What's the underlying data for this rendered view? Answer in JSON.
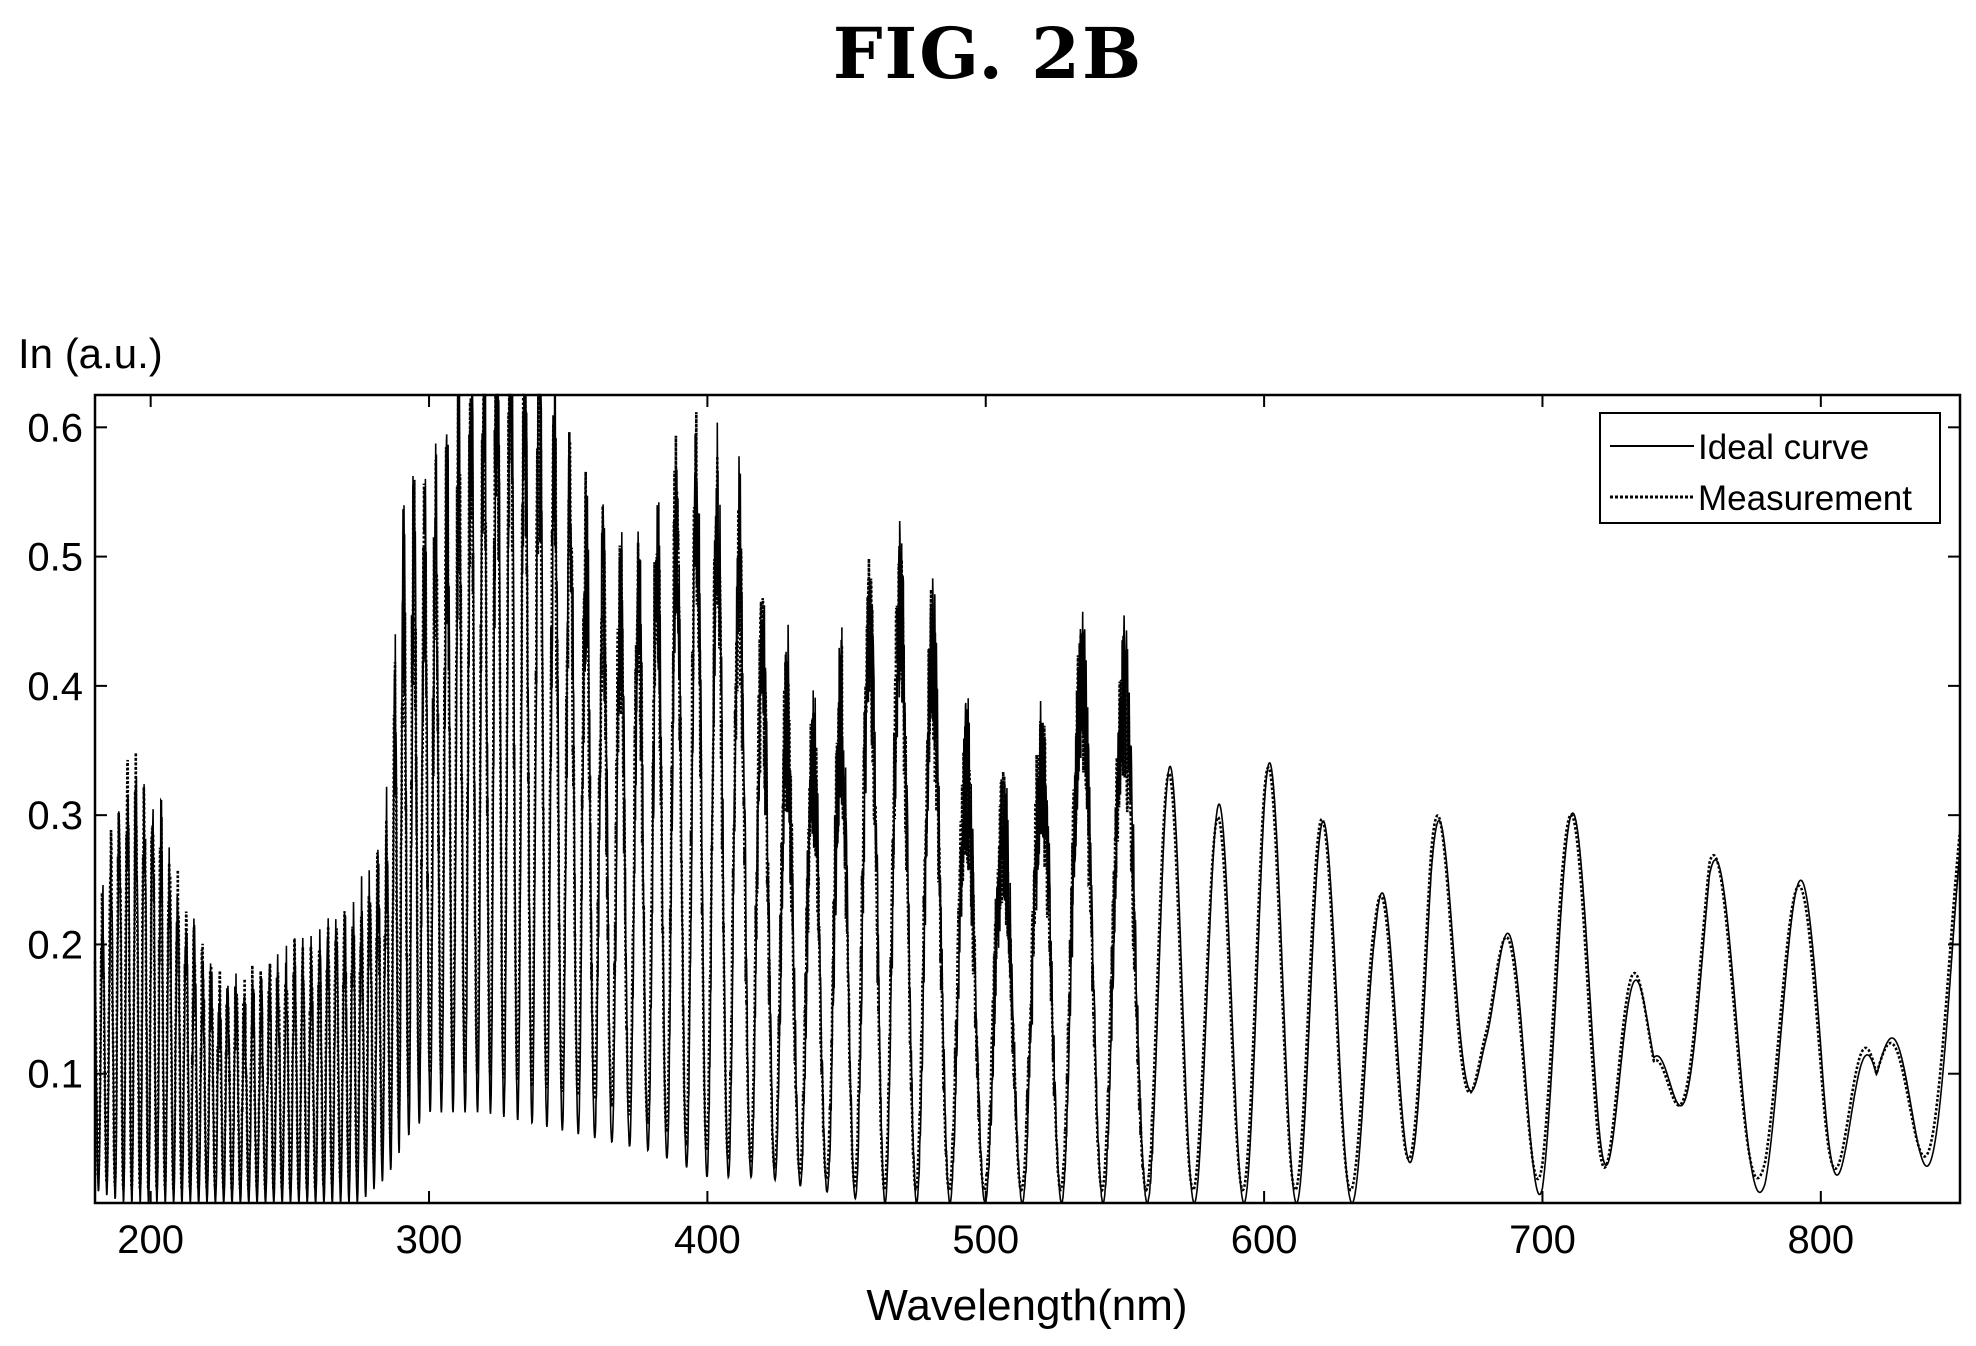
{
  "figure": {
    "title": "FIG. 2B"
  },
  "chart_data": {
    "type": "line",
    "title": "FIG. 2B",
    "xlabel": "Wavelength(nm)",
    "ylabel": "In (a.u.)",
    "xlim": [
      180,
      850
    ],
    "ylim": [
      0,
      0.625
    ],
    "x_ticks": [
      200,
      300,
      400,
      500,
      600,
      700,
      800
    ],
    "y_ticks": [
      0.1,
      0.2,
      0.3,
      0.4,
      0.5,
      0.6
    ],
    "grid": false,
    "legend": {
      "position": "top-right",
      "entries": [
        "Ideal curve",
        "Measurement"
      ]
    },
    "series": [
      {
        "name": "Ideal curve",
        "style": "solid",
        "color": "#000000",
        "envelope": {
          "wavelength": [
            180,
            190,
            200,
            220,
            240,
            260,
            275,
            285,
            292,
            300,
            320,
            340,
            360,
            380,
            400,
            420,
            440,
            460,
            480,
            500,
            520,
            540,
            560,
            580,
            600,
            620,
            640,
            660,
            680,
            700,
            720,
            740,
            760,
            780,
            800,
            820,
            850
          ],
          "upper": [
            0.17,
            0.26,
            0.27,
            0.2,
            0.17,
            0.155,
            0.2,
            0.3,
            0.62,
            0.6,
            0.6,
            0.57,
            0.56,
            0.52,
            0.47,
            0.45,
            0.42,
            0.41,
            0.385,
            0.345,
            0.36,
            0.35,
            0.355,
            0.3,
            0.345,
            0.3,
            0.23,
            0.32,
            0.17,
            0.28,
            0.32,
            0.12,
            0.28,
            0.17,
            0.3,
            0.1,
            0.31
          ],
          "lower": [
            0.01,
            0.0,
            0.0,
            0.0,
            0.0,
            0.0,
            0.0,
            0.02,
            0.05,
            0.07,
            0.07,
            0.06,
            0.05,
            0.04,
            0.02,
            0.02,
            0.01,
            0.0,
            0.0,
            0.0,
            0.0,
            0.0,
            0.0,
            0.0,
            0.0,
            0.0,
            0.0,
            0.05,
            0.1,
            0.0,
            0.02,
            0.08,
            0.07,
            0.0,
            0.0,
            0.07,
            0.0
          ]
        }
      },
      {
        "name": "Measurement",
        "style": "dotted",
        "color": "#000000",
        "envelope": {
          "wavelength": [
            180,
            190,
            200,
            220,
            240,
            260,
            275,
            285,
            292,
            300,
            320,
            340,
            360,
            380,
            400,
            420,
            440,
            460,
            480,
            500,
            520,
            540,
            560,
            580,
            600,
            620,
            640,
            660,
            680,
            700,
            720,
            740,
            760,
            780,
            800,
            820,
            850
          ],
          "upper": [
            0.17,
            0.26,
            0.27,
            0.2,
            0.17,
            0.155,
            0.2,
            0.3,
            0.6,
            0.58,
            0.58,
            0.55,
            0.55,
            0.51,
            0.46,
            0.44,
            0.41,
            0.4,
            0.38,
            0.34,
            0.35,
            0.345,
            0.35,
            0.29,
            0.34,
            0.3,
            0.23,
            0.32,
            0.17,
            0.28,
            0.32,
            0.12,
            0.28,
            0.17,
            0.3,
            0.1,
            0.31
          ],
          "lower": [
            0.02,
            0.01,
            0.01,
            0.01,
            0.01,
            0.01,
            0.02,
            0.04,
            0.08,
            0.1,
            0.1,
            0.09,
            0.08,
            0.06,
            0.04,
            0.03,
            0.02,
            0.01,
            0.01,
            0.01,
            0.01,
            0.01,
            0.01,
            0.01,
            0.01,
            0.01,
            0.01,
            0.05,
            0.1,
            0.01,
            0.02,
            0.08,
            0.07,
            0.01,
            0.01,
            0.07,
            0.01
          ]
        }
      }
    ]
  }
}
